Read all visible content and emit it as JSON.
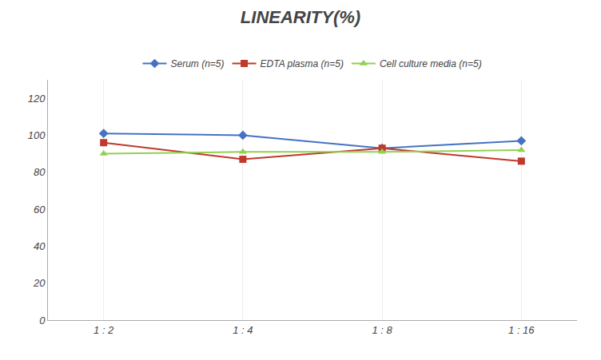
{
  "chart_data": {
    "type": "line",
    "title": "LINEARITY(%)",
    "categories": [
      "1 : 2",
      "1 : 4",
      "1 : 8",
      "1 : 16"
    ],
    "series": [
      {
        "name": "Serum (n=5)",
        "color": "#4472C4",
        "marker": "diamond",
        "values": [
          101,
          100,
          93,
          97
        ]
      },
      {
        "name": "EDTA plasma (n=5)",
        "color": "#C0392B",
        "marker": "square",
        "values": [
          96,
          87,
          93,
          86
        ]
      },
      {
        "name": "Cell culture media (n=5)",
        "color": "#92D050",
        "marker": "triangle-up",
        "values": [
          90,
          91,
          91,
          92
        ]
      }
    ],
    "ylim": [
      0,
      130
    ],
    "yticks": [
      0,
      20,
      40,
      60,
      80,
      100,
      120
    ],
    "grid": "x",
    "legend": "top"
  }
}
